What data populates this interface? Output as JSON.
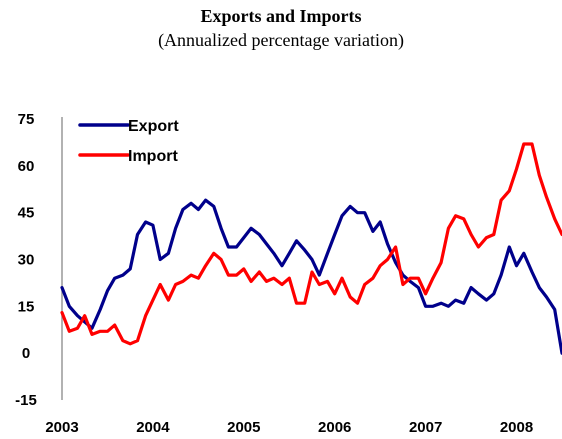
{
  "chart_data": {
    "type": "line",
    "title": "Exports and Imports",
    "subtitle": "(Annualized percentage variation)",
    "xlabel": "",
    "ylabel": "",
    "ylim": [
      -15,
      75
    ],
    "yticks": [
      -15,
      0,
      15,
      30,
      45,
      60,
      75
    ],
    "xticks": [
      "2003",
      "2004",
      "2005",
      "2006",
      "2007",
      "2008"
    ],
    "xlim": [
      2003.0,
      2008.5
    ],
    "grid": false,
    "legend": "top-left",
    "series": [
      {
        "name": "Export",
        "color": "#00008B",
        "x": [
          2003.0,
          2003.08,
          2003.17,
          2003.25,
          2003.33,
          2003.42,
          2003.5,
          2003.58,
          2003.67,
          2003.75,
          2003.83,
          2003.92,
          2004.0,
          2004.08,
          2004.17,
          2004.25,
          2004.33,
          2004.42,
          2004.5,
          2004.58,
          2004.67,
          2004.75,
          2004.83,
          2004.92,
          2005.0,
          2005.08,
          2005.17,
          2005.25,
          2005.33,
          2005.42,
          2005.5,
          2005.58,
          2005.67,
          2005.75,
          2005.83,
          2005.92,
          2006.0,
          2006.08,
          2006.17,
          2006.25,
          2006.33,
          2006.42,
          2006.5,
          2006.58,
          2006.67,
          2006.75,
          2006.83,
          2006.92,
          2007.0,
          2007.08,
          2007.17,
          2007.25,
          2007.33,
          2007.42,
          2007.5,
          2007.58,
          2007.67,
          2007.75,
          2007.83,
          2007.92,
          2008.0,
          2008.08,
          2008.17,
          2008.25,
          2008.33,
          2008.42,
          2008.5
        ],
        "values": [
          21,
          15,
          12,
          10,
          8,
          14,
          20,
          24,
          25,
          27,
          38,
          42,
          41,
          30,
          32,
          40,
          46,
          48,
          46,
          49,
          47,
          40,
          34,
          34,
          37,
          40,
          38,
          35,
          32,
          28,
          32,
          36,
          33,
          30,
          25,
          32,
          38,
          44,
          47,
          45,
          45,
          39,
          42,
          35,
          29,
          25,
          23,
          21,
          15,
          15,
          16,
          15,
          17,
          16,
          21,
          19,
          17,
          19,
          25,
          34,
          28,
          32,
          26,
          21,
          18,
          14,
          0
        ]
      },
      {
        "name": "Import",
        "color": "#FF0000",
        "x": [
          2003.0,
          2003.08,
          2003.17,
          2003.25,
          2003.33,
          2003.42,
          2003.5,
          2003.58,
          2003.67,
          2003.75,
          2003.83,
          2003.92,
          2004.0,
          2004.08,
          2004.17,
          2004.25,
          2004.33,
          2004.42,
          2004.5,
          2004.58,
          2004.67,
          2004.75,
          2004.83,
          2004.92,
          2005.0,
          2005.08,
          2005.17,
          2005.25,
          2005.33,
          2005.42,
          2005.5,
          2005.58,
          2005.67,
          2005.75,
          2005.83,
          2005.92,
          2006.0,
          2006.08,
          2006.17,
          2006.25,
          2006.33,
          2006.42,
          2006.5,
          2006.58,
          2006.67,
          2006.75,
          2006.83,
          2006.92,
          2007.0,
          2007.08,
          2007.17,
          2007.25,
          2007.33,
          2007.42,
          2007.5,
          2007.58,
          2007.67,
          2007.75,
          2007.83,
          2007.92,
          2008.0,
          2008.08,
          2008.17,
          2008.25,
          2008.33,
          2008.42,
          2008.5
        ],
        "values": [
          13,
          7,
          8,
          12,
          6,
          7,
          7,
          9,
          4,
          3,
          4,
          12,
          17,
          22,
          17,
          22,
          23,
          25,
          24,
          28,
          32,
          30,
          25,
          25,
          27,
          23,
          26,
          23,
          24,
          22,
          24,
          16,
          16,
          26,
          22,
          23,
          19,
          24,
          18,
          16,
          22,
          24,
          28,
          30,
          34,
          22,
          24,
          24,
          19,
          24,
          29,
          40,
          44,
          43,
          38,
          34,
          37,
          38,
          49,
          52,
          59,
          67,
          67,
          57,
          50,
          43,
          38
        ]
      }
    ]
  }
}
